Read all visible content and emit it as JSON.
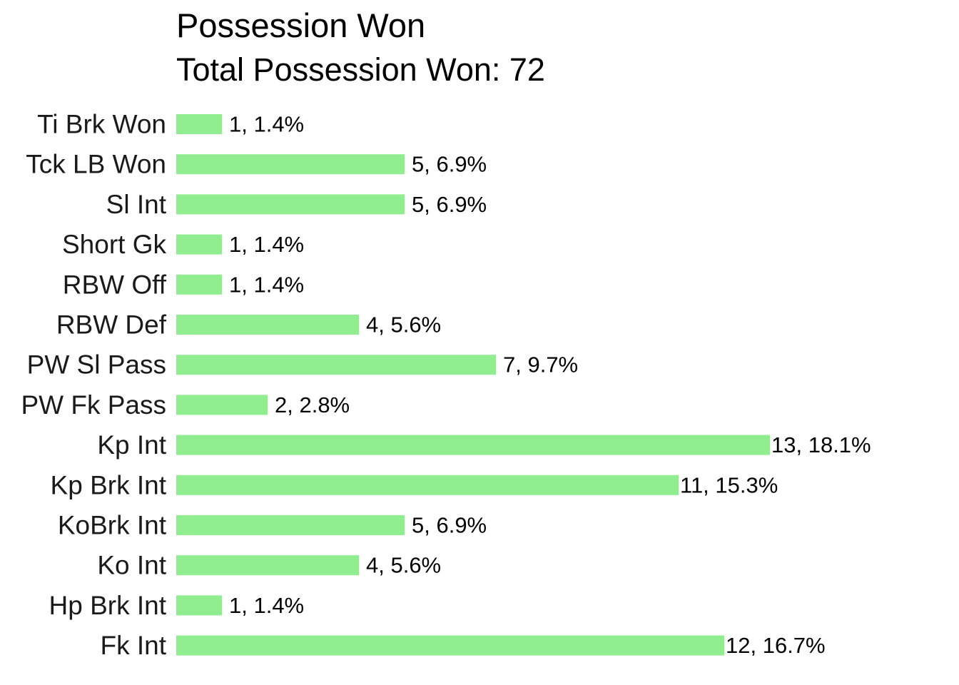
{
  "chart_data": {
    "type": "bar",
    "orientation": "horizontal",
    "title": "Possession Won",
    "subtitle": "Total Possession Won: 72",
    "categories": [
      "Ti Brk Won",
      "Tck LB Won",
      "Sl Int",
      "Short Gk",
      "RBW Off",
      "RBW Def",
      "PW Sl Pass",
      "PW Fk Pass",
      "Kp Int",
      "Kp Brk Int",
      "KoBrk Int",
      "Ko Int",
      "Hp Brk Int",
      "Fk Int"
    ],
    "values": [
      1,
      5,
      5,
      1,
      1,
      4,
      7,
      2,
      13,
      11,
      5,
      4,
      1,
      12
    ],
    "data_labels": [
      "1, 1.4%",
      "5, 6.9%",
      "5, 6.9%",
      "1, 1.4%",
      "1, 1.4%",
      "4, 5.6%",
      "7, 9.7%",
      "2, 2.8%",
      "13, 18.1%",
      "11, 15.3%",
      "5, 6.9%",
      "4, 5.6%",
      "1, 1.4%",
      "12, 16.7%"
    ],
    "xlabel": "",
    "ylabel": "",
    "xlim": [
      0,
      13
    ],
    "grid": false,
    "legend": "none",
    "bar_color": "#90ee90"
  }
}
